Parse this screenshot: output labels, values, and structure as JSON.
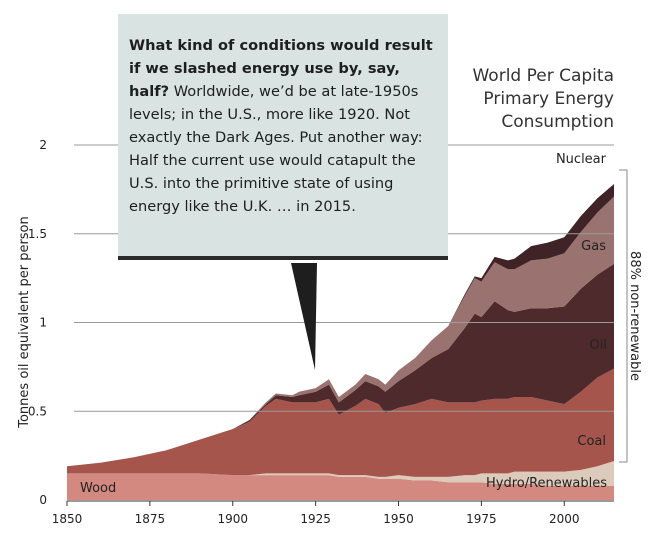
{
  "chart_data": {
    "type": "area",
    "title": [
      "World Per Capita",
      "Primary Energy",
      "Consumption"
    ],
    "ylabel": "Tonnes oil equivalent per person",
    "xlim": [
      1850,
      2015
    ],
    "ylim": [
      0,
      2
    ],
    "x_ticks": [
      1850,
      1875,
      1900,
      1925,
      1950,
      1975,
      2000
    ],
    "y_ticks": [
      {
        "value": 0,
        "label": "0"
      },
      {
        "value": 0.5,
        "label": "0.5"
      },
      {
        "value": 1,
        "label": "1"
      },
      {
        "value": 1.5,
        "label": "1.5"
      },
      {
        "value": 2,
        "label": "2"
      }
    ],
    "grid": true,
    "x": [
      1850,
      1860,
      1870,
      1880,
      1890,
      1900,
      1905,
      1910,
      1913,
      1918,
      1920,
      1925,
      1929,
      1932,
      1937,
      1940,
      1944,
      1946,
      1950,
      1955,
      1960,
      1965,
      1970,
      1973,
      1975,
      1979,
      1983,
      1985,
      1990,
      1995,
      2000,
      2005,
      2010,
      2015
    ],
    "series": [
      {
        "name": "Wood",
        "color": "#d3897f",
        "values": [
          0.15,
          0.15,
          0.15,
          0.15,
          0.15,
          0.14,
          0.14,
          0.14,
          0.14,
          0.14,
          0.14,
          0.14,
          0.14,
          0.13,
          0.13,
          0.13,
          0.12,
          0.12,
          0.12,
          0.11,
          0.11,
          0.1,
          0.1,
          0.1,
          0.1,
          0.09,
          0.09,
          0.09,
          0.09,
          0.08,
          0.08,
          0.08,
          0.08,
          0.08
        ]
      },
      {
        "name": "Hydro/Renewables",
        "color": "#dccbba",
        "values": [
          0,
          0,
          0,
          0,
          0,
          0,
          0,
          0.01,
          0.01,
          0.01,
          0.01,
          0.01,
          0.01,
          0.01,
          0.01,
          0.01,
          0.01,
          0.01,
          0.02,
          0.02,
          0.02,
          0.03,
          0.04,
          0.04,
          0.05,
          0.06,
          0.06,
          0.07,
          0.07,
          0.08,
          0.08,
          0.09,
          0.11,
          0.14
        ]
      },
      {
        "name": "Coal",
        "color": "#a5554b",
        "values": [
          0.04,
          0.06,
          0.09,
          0.13,
          0.19,
          0.26,
          0.3,
          0.38,
          0.42,
          0.4,
          0.4,
          0.4,
          0.42,
          0.34,
          0.39,
          0.43,
          0.41,
          0.36,
          0.38,
          0.41,
          0.44,
          0.42,
          0.41,
          0.41,
          0.41,
          0.42,
          0.42,
          0.42,
          0.42,
          0.4,
          0.38,
          0.44,
          0.5,
          0.52
        ]
      },
      {
        "name": "Oil",
        "color": "#4f2a2c",
        "values": [
          0,
          0,
          0,
          0,
          0,
          0,
          0.01,
          0.01,
          0.02,
          0.03,
          0.04,
          0.06,
          0.08,
          0.07,
          0.09,
          0.1,
          0.1,
          0.12,
          0.15,
          0.19,
          0.23,
          0.3,
          0.42,
          0.5,
          0.47,
          0.55,
          0.5,
          0.48,
          0.5,
          0.52,
          0.55,
          0.58,
          0.58,
          0.59
        ]
      },
      {
        "name": "Gas",
        "color": "#9a726f",
        "values": [
          0,
          0,
          0,
          0,
          0,
          0,
          0,
          0.01,
          0.01,
          0.01,
          0.02,
          0.02,
          0.03,
          0.03,
          0.03,
          0.04,
          0.04,
          0.04,
          0.06,
          0.07,
          0.1,
          0.13,
          0.18,
          0.2,
          0.2,
          0.22,
          0.23,
          0.24,
          0.27,
          0.28,
          0.3,
          0.32,
          0.35,
          0.38
        ]
      },
      {
        "name": "Nuclear",
        "color": "#3f2326",
        "values": [
          0,
          0,
          0,
          0,
          0,
          0,
          0,
          0,
          0,
          0,
          0,
          0,
          0,
          0,
          0,
          0,
          0,
          0,
          0,
          0,
          0,
          0,
          0.01,
          0.01,
          0.02,
          0.03,
          0.05,
          0.06,
          0.08,
          0.09,
          0.09,
          0.09,
          0.08,
          0.07
        ]
      }
    ],
    "annotation": "88% non-renewable"
  },
  "callout": {
    "bold": "What kind of conditions would result if we slashed energy use by, say, half?",
    "text": " Worldwide, we’d be at late-1950s levels; in the U.S., more like 1920. Not exactly the Dark Ages. Put another way:  Half the current use would catapult the U.S. into the primitive state of using energy like the U.K. … in 2015."
  }
}
